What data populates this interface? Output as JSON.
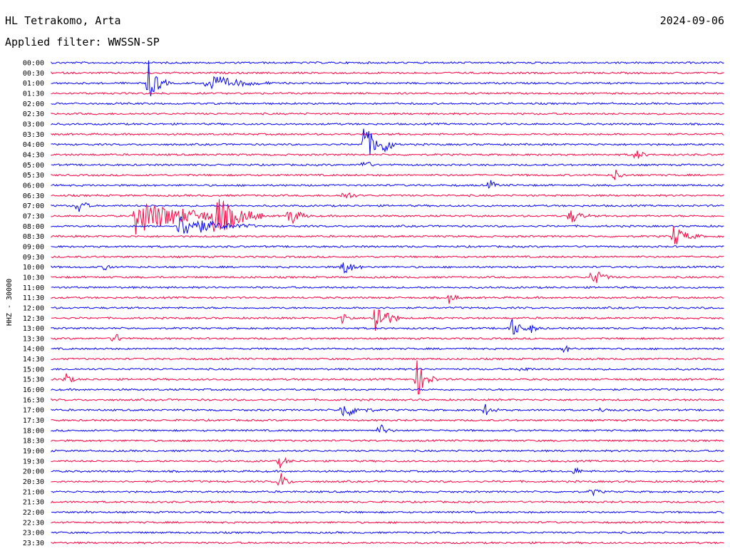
{
  "header": {
    "station": "HL Tetrakomo, Arta",
    "filter": "Applied filter: WWSSN-SP",
    "date": "2024-09-06"
  },
  "chart_data": {
    "type": "line",
    "title": "HL Tetrakomo, Arta",
    "subtitle": "Applied filter: WWSSN-SP",
    "ylabel": "HHZ - 30000",
    "row_labels": [
      "00:00",
      "00:30",
      "01:00",
      "01:30",
      "02:00",
      "02:30",
      "03:00",
      "03:30",
      "04:00",
      "04:30",
      "05:00",
      "05:30",
      "06:00",
      "06:30",
      "07:00",
      "07:30",
      "08:00",
      "08:30",
      "09:00",
      "09:30",
      "10:00",
      "10:30",
      "11:00",
      "11:30",
      "12:00",
      "12:30",
      "13:00",
      "13:30",
      "14:00",
      "14:30",
      "15:00",
      "15:30",
      "16:00",
      "16:30",
      "17:00",
      "17:30",
      "18:00",
      "18:30",
      "19:00",
      "19:30",
      "20:00",
      "20:30",
      "21:00",
      "21:30",
      "22:00",
      "22:30",
      "23:00",
      "23:30"
    ],
    "colors": {
      "even": "#0000ff",
      "odd": "#ff0040"
    },
    "grid": false
  }
}
